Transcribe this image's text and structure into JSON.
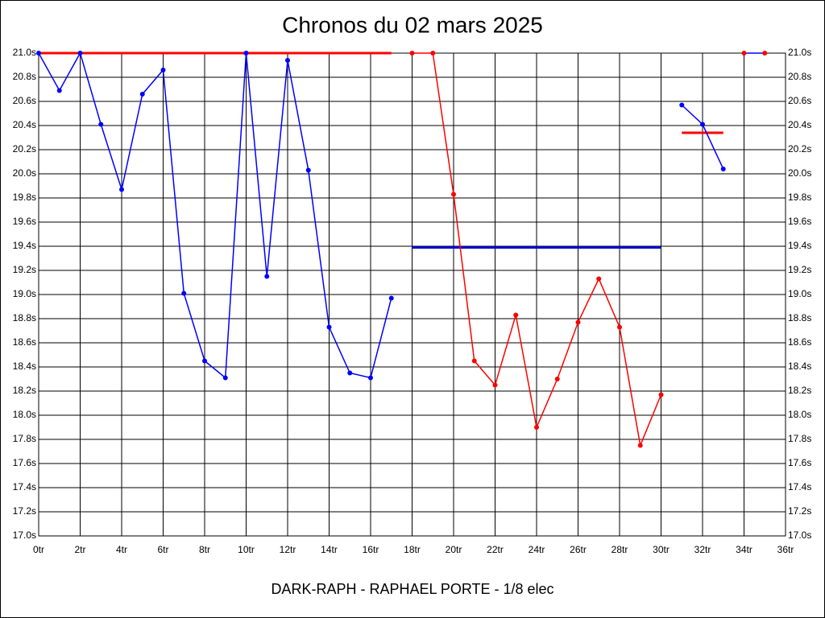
{
  "chart_data": {
    "type": "line",
    "title": "Chronos du 02 mars 2025",
    "footer": "DARK-RAPH - RAPHAEL PORTE - 1/8 elec",
    "x": [
      0,
      1,
      2,
      3,
      4,
      5,
      6,
      7,
      8,
      9,
      10,
      11,
      12,
      13,
      14,
      15,
      16,
      17,
      18,
      19,
      20,
      21,
      22,
      23,
      24,
      25,
      26,
      27,
      28,
      29,
      30,
      31,
      32,
      33,
      34,
      35
    ],
    "series": [
      {
        "color": "#0000ff",
        "marker_color": "#0000ff",
        "values": [
          21.0,
          20.69,
          21.0,
          20.41,
          19.87,
          20.66,
          20.86,
          19.01,
          18.45,
          18.31,
          21.0,
          19.15,
          20.94,
          20.03,
          18.73,
          18.35,
          18.31,
          18.97,
          null,
          null,
          null,
          null,
          null,
          null,
          null,
          null,
          null,
          null,
          null,
          null,
          null,
          20.57,
          20.41,
          20.04,
          null,
          null
        ]
      },
      {
        "color": "#ff0000",
        "marker_color": "#ff0000",
        "values": [
          null,
          null,
          null,
          null,
          null,
          null,
          null,
          null,
          null,
          null,
          null,
          null,
          null,
          null,
          null,
          null,
          null,
          null,
          21.0,
          21.0,
          19.83,
          18.45,
          18.25,
          18.83,
          17.9,
          18.3,
          18.77,
          19.13,
          18.73,
          17.75,
          18.17,
          null,
          null,
          null,
          null,
          null
        ]
      },
      {
        "color": "#0000ff",
        "marker_color": "#ff0000",
        "values": [
          null,
          null,
          null,
          null,
          null,
          null,
          null,
          null,
          null,
          null,
          null,
          null,
          null,
          null,
          null,
          null,
          null,
          null,
          null,
          null,
          null,
          null,
          null,
          null,
          null,
          null,
          null,
          null,
          null,
          null,
          null,
          null,
          null,
          null,
          21.0,
          21.0
        ]
      }
    ],
    "reference_lines": [
      {
        "color": "#ff0000",
        "value": 21.0,
        "from": 0,
        "to": 17
      },
      {
        "color": "#0000cc",
        "value": 19.39,
        "from": 18,
        "to": 30
      },
      {
        "color": "#ff0000",
        "value": 20.34,
        "from": 31,
        "to": 33
      }
    ],
    "xlim": [
      0,
      36
    ],
    "xticks": [
      {
        "value": 0,
        "label": "0tr"
      },
      {
        "value": 2,
        "label": "2tr"
      },
      {
        "value": 4,
        "label": "4tr"
      },
      {
        "value": 6,
        "label": "6tr"
      },
      {
        "value": 8,
        "label": "8tr"
      },
      {
        "value": 10,
        "label": "10tr"
      },
      {
        "value": 12,
        "label": "12tr"
      },
      {
        "value": 14,
        "label": "14tr"
      },
      {
        "value": 16,
        "label": "16tr"
      },
      {
        "value": 18,
        "label": "18tr"
      },
      {
        "value": 20,
        "label": "20tr"
      },
      {
        "value": 22,
        "label": "22tr"
      },
      {
        "value": 24,
        "label": "24tr"
      },
      {
        "value": 26,
        "label": "26tr"
      },
      {
        "value": 28,
        "label": "28tr"
      },
      {
        "value": 30,
        "label": "30tr"
      },
      {
        "value": 32,
        "label": "32tr"
      },
      {
        "value": 34,
        "label": "34tr"
      },
      {
        "value": 36,
        "label": "36tr"
      }
    ],
    "ylim": [
      17.0,
      21.0
    ],
    "yticks": [
      {
        "value": 17.0,
        "label": "17.0s"
      },
      {
        "value": 17.2,
        "label": "17.2s"
      },
      {
        "value": 17.4,
        "label": "17.4s"
      },
      {
        "value": 17.6,
        "label": "17.6s"
      },
      {
        "value": 17.8,
        "label": "17.8s"
      },
      {
        "value": 18.0,
        "label": "18.0s"
      },
      {
        "value": 18.2,
        "label": "18.2s"
      },
      {
        "value": 18.4,
        "label": "18.4s"
      },
      {
        "value": 18.6,
        "label": "18.6s"
      },
      {
        "value": 18.8,
        "label": "18.8s"
      },
      {
        "value": 19.0,
        "label": "19.0s"
      },
      {
        "value": 19.2,
        "label": "19.2s"
      },
      {
        "value": 19.4,
        "label": "19.4s"
      },
      {
        "value": 19.6,
        "label": "19.6s"
      },
      {
        "value": 19.8,
        "label": "19.8s"
      },
      {
        "value": 20.0,
        "label": "20.0s"
      },
      {
        "value": 20.2,
        "label": "20.2s"
      },
      {
        "value": 20.4,
        "label": "20.4s"
      },
      {
        "value": 20.6,
        "label": "20.6s"
      },
      {
        "value": 20.8,
        "label": "20.8s"
      },
      {
        "value": 21.0,
        "label": "21.0s"
      }
    ],
    "grid": true
  }
}
